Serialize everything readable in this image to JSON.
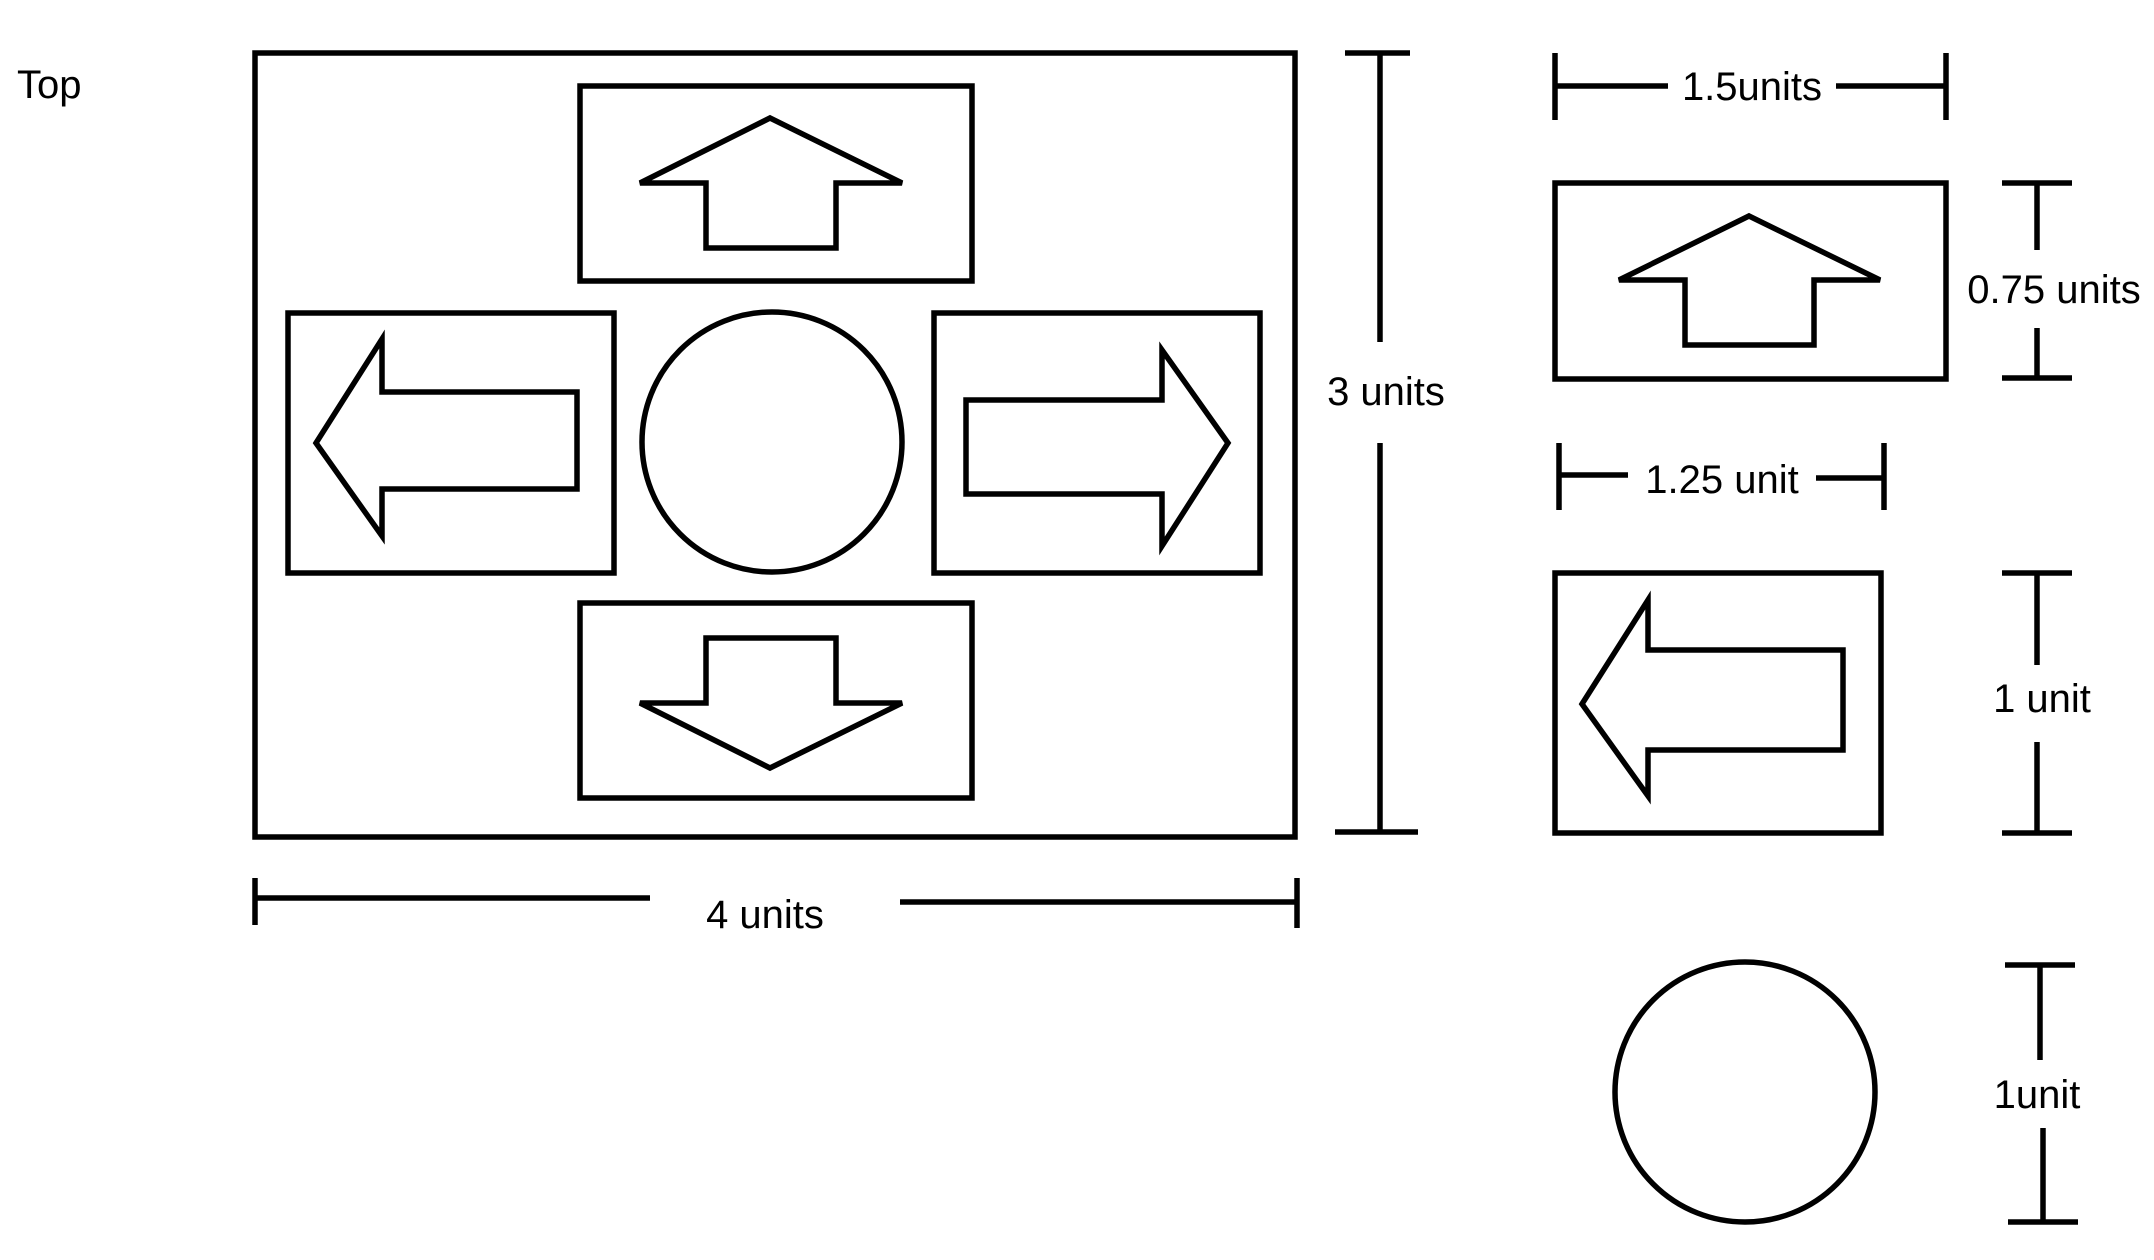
{
  "view_label": "Top",
  "dimensions": {
    "panel_width": "4 units",
    "panel_height": "3 units",
    "arrow_button_long_side": "1.5units",
    "arrow_button_short_side": "0.75 units",
    "side_button_width": "1.25 unit",
    "side_button_height": "1 unit",
    "circle_button_diameter": "1unit"
  },
  "colors": {
    "stroke": "#000000",
    "background": "#ffffff"
  },
  "icons": [
    "up-arrow-icon",
    "down-arrow-icon",
    "left-arrow-icon",
    "right-arrow-icon",
    "circle-button-icon"
  ]
}
